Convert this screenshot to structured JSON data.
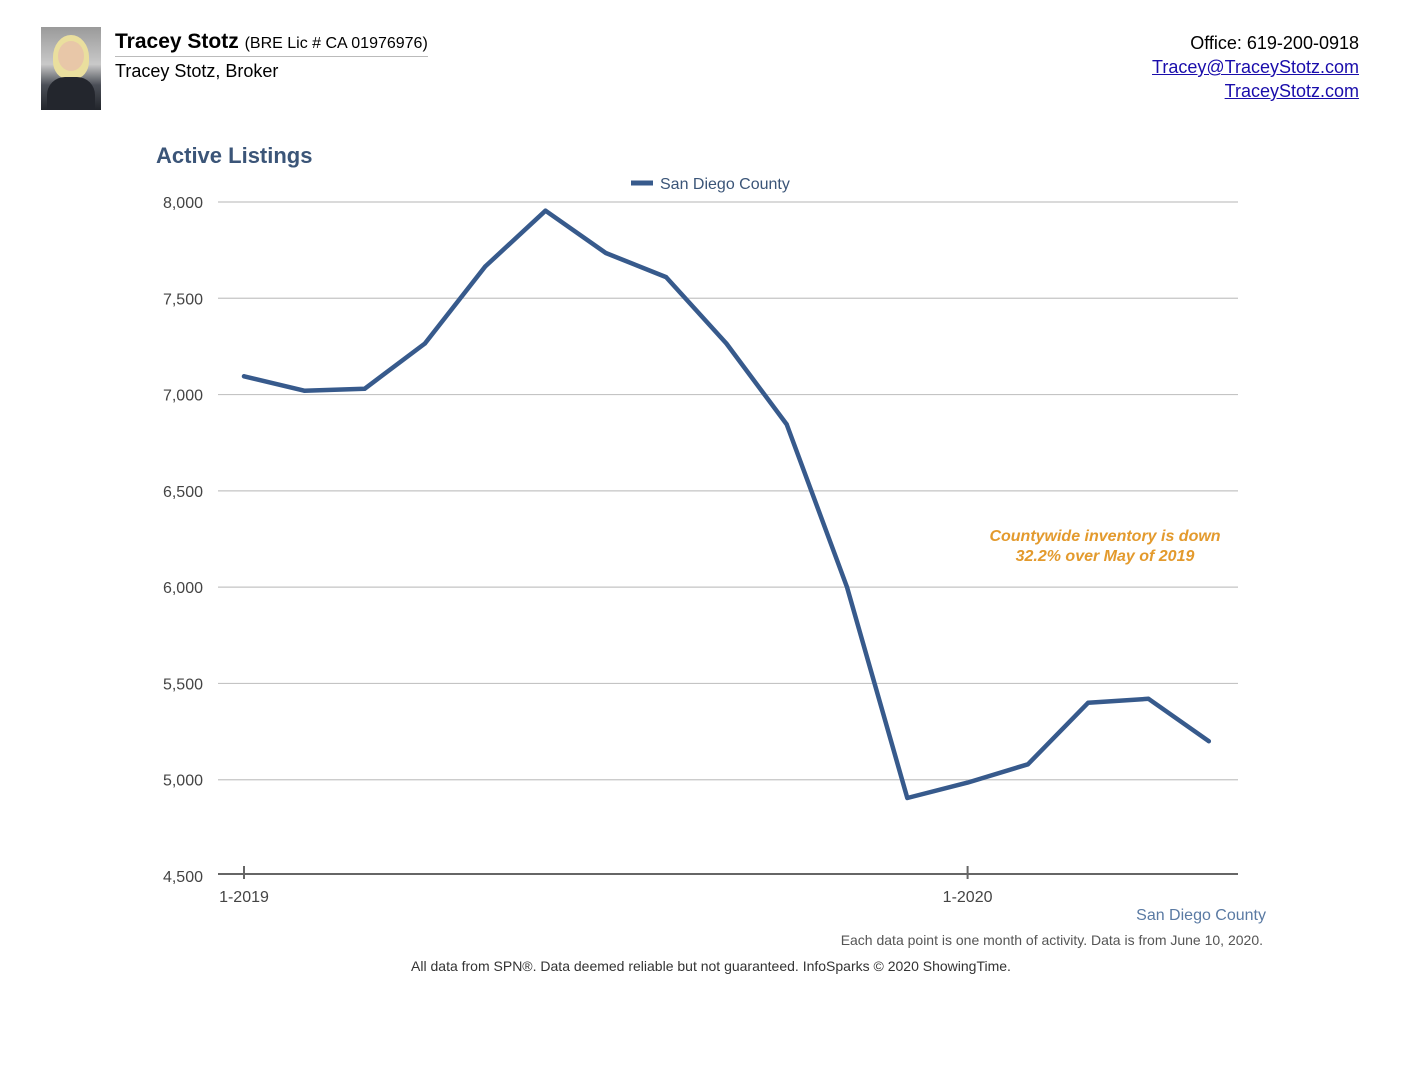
{
  "header": {
    "agent_name": "Tracey Stotz",
    "license": "(BRE Lic # CA 01976976)",
    "agent_title": "Tracey Stotz, Broker",
    "office": "Office: 619-200-0918",
    "email": "Tracey@TraceyStotz.com",
    "website": "TraceyStotz.com"
  },
  "annotation": {
    "line1": "Countywide inventory is down",
    "line2": "32.2% over May of 2019"
  },
  "series_caption": "San Diego County",
  "note": "Each data point is one month of activity. Data is from June 10, 2020.",
  "footer": "All data from SPN®. Data deemed reliable but not guaranteed. InfoSparks © 2020 ShowingTime.",
  "colors": {
    "series": "#375a8c",
    "title": "#3b5578",
    "annotation": "#e39a2d",
    "grid": "#c4c4c4"
  },
  "chart_data": {
    "type": "line",
    "title": "Active Listings",
    "xlabel": "",
    "ylabel": "",
    "ylim": [
      4500,
      8000
    ],
    "yticks": [
      8000,
      7500,
      7000,
      6500,
      6000,
      5500,
      5000,
      4500
    ],
    "ytick_labels": [
      "8,000",
      "7,500",
      "7,000",
      "6,500",
      "6,000",
      "5,500",
      "5,000",
      "4,500"
    ],
    "x": [
      "1-2019",
      "2-2019",
      "3-2019",
      "4-2019",
      "5-2019",
      "6-2019",
      "7-2019",
      "8-2019",
      "9-2019",
      "10-2019",
      "11-2019",
      "12-2019",
      "1-2020",
      "2-2020",
      "3-2020",
      "4-2020",
      "5-2020"
    ],
    "xtick_labels": [
      {
        "index": 0,
        "label": "1-2019"
      },
      {
        "index": 12,
        "label": "1-2020"
      }
    ],
    "series": [
      {
        "name": "San Diego County",
        "values": [
          7095,
          7020,
          7030,
          7265,
          7665,
          7955,
          7735,
          7610,
          7265,
          6845,
          6000,
          4905,
          4985,
          5080,
          5400,
          5420,
          5200
        ]
      }
    ],
    "legend": "top-center",
    "grid": true
  }
}
